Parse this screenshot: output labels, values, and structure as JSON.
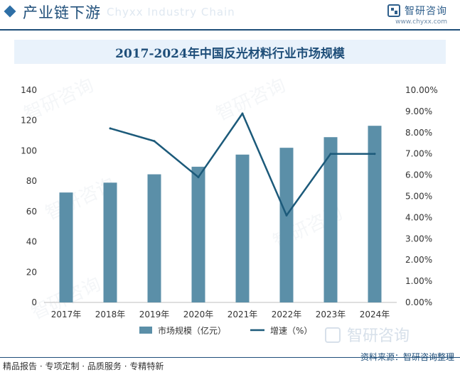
{
  "header": {
    "section_title": "产业链下游",
    "ghost_text": "Chyxx Industry Chain",
    "logo_text": "智研咨询",
    "site_url": "www.chyxx.com"
  },
  "watermark_text": "智研咨询",
  "footer": {
    "left_text": "精品报告 · 专项定制 · 品质服务 · 专精特新",
    "source_text": "资料来源：智研咨询整理",
    "logo_text": "智研咨询"
  },
  "colors": {
    "bar": "#5b8fa8",
    "line": "#1c5a7a",
    "brand": "#1e4e79"
  },
  "chart_data": {
    "type": "bar",
    "title": "2017-2024年中国反光材料行业市场规模",
    "categories": [
      "2017年",
      "2018年",
      "2019年",
      "2020年",
      "2021年",
      "2022年",
      "2023年",
      "2024年"
    ],
    "series": [
      {
        "name": "市场规模（亿元）",
        "type": "bar",
        "axis": "left",
        "values": [
          72.5,
          79,
          84.5,
          89.5,
          97.5,
          102,
          109,
          116.5
        ]
      },
      {
        "name": "增速（%）",
        "type": "line",
        "axis": "right",
        "values": [
          null,
          8.2,
          7.6,
          5.9,
          8.9,
          4.1,
          7.0,
          7.0
        ]
      }
    ],
    "y_left": {
      "min": 0,
      "max": 140,
      "ticks": [
        "0",
        "20",
        "40",
        "60",
        "80",
        "100",
        "120",
        "140"
      ]
    },
    "y_right": {
      "min": 0,
      "max": 10,
      "ticks": [
        "0.00%",
        "1.00%",
        "2.00%",
        "3.00%",
        "4.00%",
        "5.00%",
        "6.00%",
        "7.00%",
        "8.00%",
        "9.00%",
        "10.00%"
      ]
    },
    "grid": false,
    "legend_position": "bottom"
  }
}
